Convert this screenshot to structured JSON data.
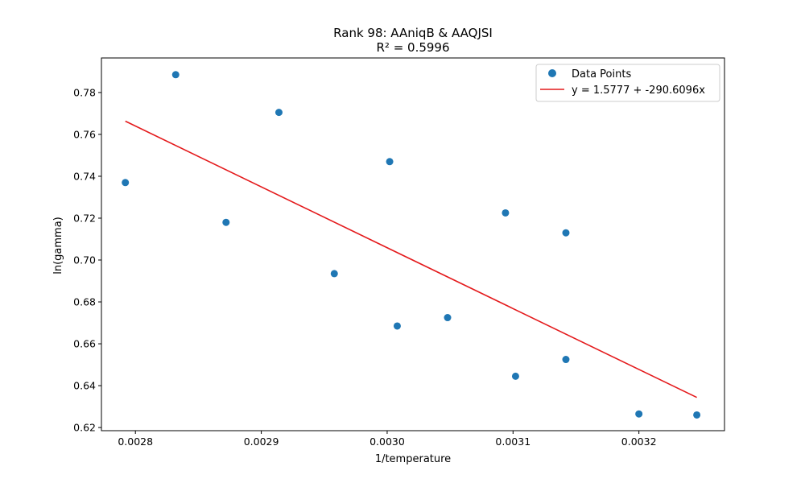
{
  "chart_data": {
    "type": "scatter",
    "title": "Rank 98: AAniqB & AAQJSI",
    "subtitle": "R² = 0.5996",
    "xlabel": "1/temperature",
    "ylabel": "ln(gamma)",
    "xlim": [
      0.002773,
      0.003268
    ],
    "ylim": [
      0.6185,
      0.7965
    ],
    "xticks": [
      0.0028,
      0.0029,
      0.003,
      0.0031,
      0.0032
    ],
    "xtick_labels": [
      "0.0028",
      "0.0029",
      "0.0030",
      "0.0031",
      "0.0032"
    ],
    "yticks": [
      0.62,
      0.64,
      0.66,
      0.68,
      0.7,
      0.72,
      0.74,
      0.76,
      0.78
    ],
    "ytick_labels": [
      "0.62",
      "0.64",
      "0.66",
      "0.68",
      "0.70",
      "0.72",
      "0.74",
      "0.76",
      "0.78"
    ],
    "grid": false,
    "legend_position": "top-right",
    "series": [
      {
        "name": "Data Points",
        "kind": "scatter",
        "color": "#1f77b4",
        "x": [
          0.002792,
          0.002832,
          0.002872,
          0.002914,
          0.002958,
          0.003002,
          0.003008,
          0.003048,
          0.003094,
          0.003102,
          0.003142,
          0.003142,
          0.0032,
          0.003246
        ],
        "y": [
          0.737,
          0.7885,
          0.718,
          0.7705,
          0.6935,
          0.747,
          0.6685,
          0.6725,
          0.7225,
          0.6445,
          0.713,
          0.6525,
          0.6265,
          0.626
        ]
      },
      {
        "name": "y = 1.5777 + -290.6096x",
        "kind": "line",
        "color": "#e41a1c",
        "intercept": 1.5777,
        "slope": -290.6096,
        "x": [
          0.002792,
          0.003246
        ]
      }
    ]
  }
}
